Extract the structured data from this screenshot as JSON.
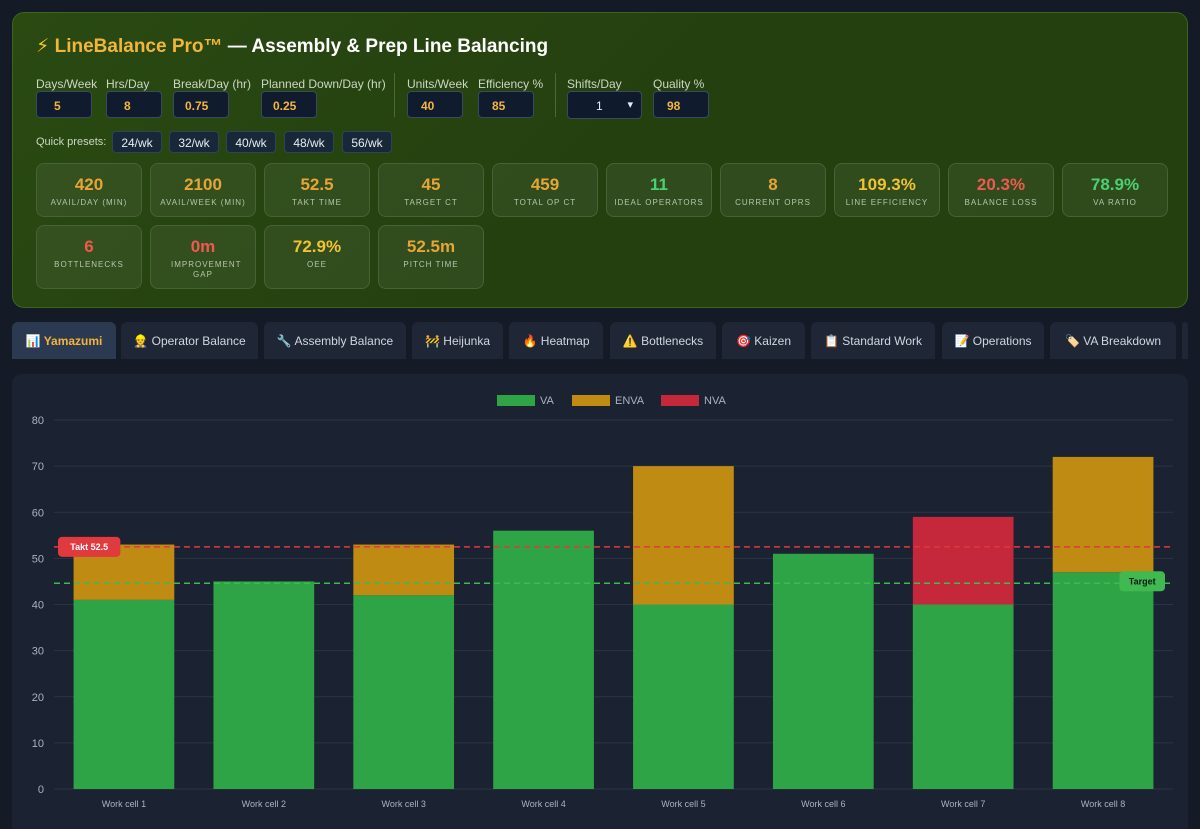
{
  "app": {
    "icon": "⚡",
    "brand": "LineBalance Pro™",
    "title_rest": " — Assembly & Prep Line Balancing"
  },
  "inputs": {
    "days_week": {
      "label": "Days/Week",
      "value": "5"
    },
    "hrs_day": {
      "label": "Hrs/Day",
      "value": "8"
    },
    "break_day": {
      "label": "Break/Day (hr)",
      "value": "0.75"
    },
    "planned_down": {
      "label": "Planned Down/Day (hr)",
      "value": "0.25"
    },
    "units_week": {
      "label": "Units/Week",
      "value": "40"
    },
    "efficiency": {
      "label": "Efficiency %",
      "value": "85"
    },
    "shifts_day": {
      "label": "Shifts/Day",
      "value": "1"
    },
    "quality": {
      "label": "Quality %",
      "value": "98"
    }
  },
  "presets": {
    "label": "Quick presets:",
    "items": [
      "24/wk",
      "32/wk",
      "40/wk",
      "48/wk",
      "56/wk"
    ]
  },
  "kpis": [
    {
      "value": "420",
      "label": "AVAIL/DAY (MIN)",
      "color": "#e6a536"
    },
    {
      "value": "2100",
      "label": "AVAIL/WEEK (MIN)",
      "color": "#e6a536"
    },
    {
      "value": "52.5",
      "label": "TAKT TIME",
      "color": "#e6a536"
    },
    {
      "value": "45",
      "label": "TARGET CT",
      "color": "#e6a536"
    },
    {
      "value": "459",
      "label": "TOTAL OP CT",
      "color": "#e6a536"
    },
    {
      "value": "11",
      "label": "IDEAL OPERATORS",
      "color": "#4cd074"
    },
    {
      "value": "8",
      "label": "CURRENT OPRS",
      "color": "#e6a536"
    },
    {
      "value": "109.3%",
      "label": "LINE EFFICIENCY",
      "color": "#f1c232"
    },
    {
      "value": "20.3%",
      "label": "BALANCE LOSS",
      "color": "#ef5a50"
    },
    {
      "value": "78.9%",
      "label": "VA RATIO",
      "color": "#4cd074"
    },
    {
      "value": "6",
      "label": "BOTTLENECKS",
      "color": "#ef5a50"
    },
    {
      "value": "0m",
      "label": "IMPROVEMENT GAP",
      "color": "#ef5a50"
    },
    {
      "value": "72.9%",
      "label": "OEE",
      "color": "#f1c232"
    },
    {
      "value": "52.5m",
      "label": "PITCH TIME",
      "color": "#e6a536"
    }
  ],
  "tabs": [
    {
      "icon": "📊",
      "label": "Yamazumi",
      "active": true
    },
    {
      "icon": "👷",
      "label": "Operator Balance"
    },
    {
      "icon": "🔧",
      "label": "Assembly Balance"
    },
    {
      "icon": "🚧",
      "label": "Heijunka"
    },
    {
      "icon": "🔥",
      "label": "Heatmap"
    },
    {
      "icon": "⚠️",
      "label": "Bottlenecks"
    },
    {
      "icon": "🎯",
      "label": "Kaizen"
    },
    {
      "icon": "📋",
      "label": "Standard Work"
    },
    {
      "icon": "📝",
      "label": "Operations"
    },
    {
      "icon": "🏷️",
      "label": "VA Breakdown"
    }
  ],
  "chart_data": {
    "type": "bar",
    "stacked": true,
    "categories": [
      "Work cell 1",
      "Work cell 2",
      "Work cell 3",
      "Work cell 4",
      "Work cell 5",
      "Work cell 6",
      "Work cell 7",
      "Work cell 8"
    ],
    "series": [
      {
        "name": "VA",
        "color": "#2fa446",
        "values": [
          41,
          45,
          42,
          56,
          40,
          51,
          40,
          47
        ]
      },
      {
        "name": "ENVA",
        "color": "#bf8b12",
        "values": [
          12,
          0,
          11,
          0,
          30,
          0,
          0,
          25
        ]
      },
      {
        "name": "NVA",
        "color": "#c4283a",
        "values": [
          0,
          0,
          0,
          0,
          0,
          0,
          19,
          0
        ]
      }
    ],
    "ylim": [
      0,
      80
    ],
    "yticks": [
      0,
      10,
      20,
      30,
      40,
      50,
      60,
      70,
      80
    ],
    "lines": [
      {
        "label": "Takt 52.5",
        "value": 52.5,
        "color": "#e0393e",
        "label_side": "left"
      },
      {
        "label": "Target",
        "value": 44.6,
        "color": "#3fb950",
        "label_side": "right"
      }
    ],
    "legend_position": "top-center",
    "grid": true
  }
}
